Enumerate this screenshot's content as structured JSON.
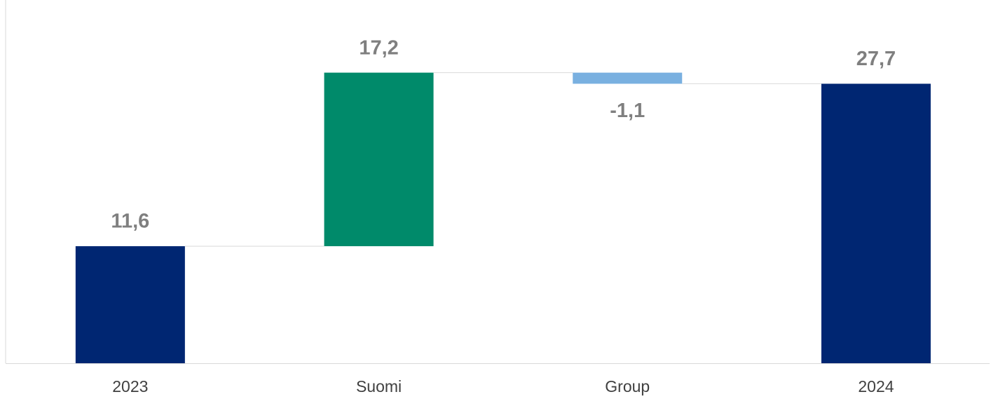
{
  "chart_data": {
    "type": "waterfall",
    "categories": [
      "2023",
      "Suomi",
      "Group",
      "2024"
    ],
    "values": [
      11.6,
      17.2,
      -1.1,
      27.7
    ],
    "value_labels": [
      "11,6",
      "17,2",
      "-1,1",
      "27,7"
    ],
    "measure": [
      "absolute",
      "relative",
      "relative",
      "total"
    ],
    "colors": [
      "#002672",
      "#008a6a",
      "#79b0e0",
      "#002672"
    ],
    "ylim": [
      0,
      36
    ]
  }
}
